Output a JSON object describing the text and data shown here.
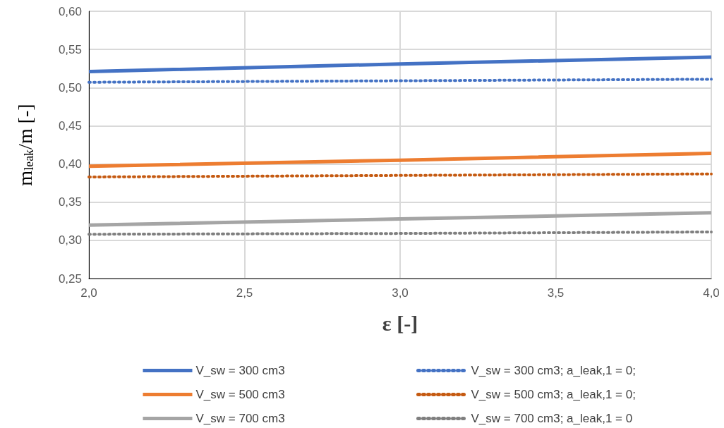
{
  "chart_data": {
    "type": "line",
    "xlabel": "ε [-]",
    "ylabel": "m$_{leak}$/m [-]",
    "x": [
      2,
      3,
      4
    ],
    "series": [
      {
        "name": "V_sw = 300 cm3",
        "color": "#4472c4",
        "values": [
          0.521,
          0.531,
          0.54
        ],
        "line_style": "solid"
      },
      {
        "name": "V_sw = 300 cm3; a_leak,1 = 0;",
        "color": "#4472c4",
        "values": [
          0.507,
          0.509,
          0.511
        ],
        "line_style": "dotted"
      },
      {
        "name": "V_sw = 500 cm3",
        "color": "#ed7d31",
        "values": [
          0.397,
          0.405,
          0.414
        ],
        "line_style": "solid"
      },
      {
        "name": "V_sw = 500 cm3; a_leak,1 = 0;",
        "color": "#c55a11",
        "values": [
          0.383,
          0.385,
          0.387
        ],
        "line_style": "dotted"
      },
      {
        "name": "V_sw = 700 cm3",
        "color": "#a5a5a5",
        "values": [
          0.32,
          0.328,
          0.336
        ],
        "line_style": "solid"
      },
      {
        "name": "V_sw = 700 cm3; a_leak,1 = 0",
        "color": "#7f7f7f",
        "values": [
          0.308,
          0.309,
          0.311
        ],
        "line_style": "dotted"
      }
    ],
    "xlim": [
      2,
      4
    ],
    "xticks": [
      {
        "value": 2,
        "label": "2,0"
      },
      {
        "value": 2.5,
        "label": "2,5"
      },
      {
        "value": 3,
        "label": "3,0"
      },
      {
        "value": 3.5,
        "label": "3,5"
      },
      {
        "value": 4,
        "label": "4,0"
      }
    ],
    "ylim": [
      0.25,
      0.6
    ],
    "yticks": [
      {
        "value": 0.25,
        "label": "0,25"
      },
      {
        "value": 0.3,
        "label": "0,30"
      },
      {
        "value": 0.35,
        "label": "0,35"
      },
      {
        "value": 0.4,
        "label": "0,40"
      },
      {
        "value": 0.45,
        "label": "0,45"
      },
      {
        "value": 0.5,
        "label": "0,50"
      },
      {
        "value": 0.55,
        "label": "0,55"
      },
      {
        "value": 0.6,
        "label": "0,60"
      }
    ],
    "grid": true,
    "legend": "bottom",
    "marker": "none"
  }
}
